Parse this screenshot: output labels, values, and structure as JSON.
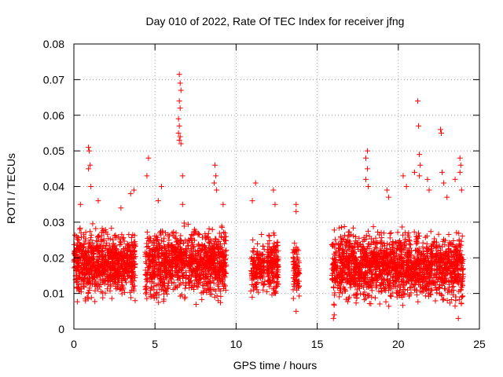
{
  "chart_data": {
    "type": "scatter",
    "title": "Day 010 of 2022, Rate Of TEC Index for receiver jfng",
    "xlabel": "GPS time / hours",
    "ylabel": "ROTI / TECUs",
    "xlim": [
      0,
      25
    ],
    "ylim": [
      0,
      0.08
    ],
    "x_ticks": [
      0,
      5,
      10,
      15,
      20,
      25
    ],
    "x_tick_labels": [
      "0",
      "5",
      "10",
      "15",
      "20",
      "25"
    ],
    "y_ticks": [
      0,
      0.01,
      0.02,
      0.03,
      0.04,
      0.05,
      0.06,
      0.07,
      0.08
    ],
    "y_tick_labels": [
      "0",
      "0.01",
      "0.02",
      "0.03",
      "0.04",
      "0.05",
      "0.06",
      "0.07",
      "0.08"
    ],
    "grid": true,
    "marker": "+",
    "marker_color": "#ff0000",
    "series": [
      {
        "name": "ROTI",
        "clusters": [
          {
            "x_range": [
              0.0,
              3.8
            ],
            "y_range": [
              0.006,
              0.03
            ],
            "count": 850
          },
          {
            "x_range": [
              4.4,
              9.4
            ],
            "y_range": [
              0.006,
              0.031
            ],
            "count": 1050
          },
          {
            "x_range": [
              10.9,
              11.8
            ],
            "y_range": [
              0.007,
              0.027
            ],
            "count": 140
          },
          {
            "x_range": [
              11.9,
              12.6
            ],
            "y_range": [
              0.006,
              0.03
            ],
            "count": 160
          },
          {
            "x_range": [
              13.5,
              13.9
            ],
            "y_range": [
              0.006,
              0.026
            ],
            "count": 80
          },
          {
            "x_range": [
              15.9,
              24.0
            ],
            "y_range": [
              0.005,
              0.03
            ],
            "count": 1700
          }
        ],
        "outliers": [
          {
            "x": 0.9,
            "y": 0.051
          },
          {
            "x": 0.95,
            "y": 0.05
          },
          {
            "x": 1.0,
            "y": 0.046
          },
          {
            "x": 0.9,
            "y": 0.045
          },
          {
            "x": 1.05,
            "y": 0.04
          },
          {
            "x": 0.4,
            "y": 0.035
          },
          {
            "x": 1.5,
            "y": 0.036
          },
          {
            "x": 2.9,
            "y": 0.034
          },
          {
            "x": 3.5,
            "y": 0.038
          },
          {
            "x": 3.7,
            "y": 0.039
          },
          {
            "x": 4.6,
            "y": 0.048
          },
          {
            "x": 4.5,
            "y": 0.043
          },
          {
            "x": 5.4,
            "y": 0.04
          },
          {
            "x": 5.2,
            "y": 0.036
          },
          {
            "x": 6.5,
            "y": 0.0715
          },
          {
            "x": 6.55,
            "y": 0.069
          },
          {
            "x": 6.6,
            "y": 0.067
          },
          {
            "x": 6.5,
            "y": 0.064
          },
          {
            "x": 6.55,
            "y": 0.062
          },
          {
            "x": 6.45,
            "y": 0.059
          },
          {
            "x": 6.5,
            "y": 0.057
          },
          {
            "x": 6.45,
            "y": 0.055
          },
          {
            "x": 6.55,
            "y": 0.054
          },
          {
            "x": 6.5,
            "y": 0.053
          },
          {
            "x": 6.6,
            "y": 0.052
          },
          {
            "x": 6.7,
            "y": 0.043
          },
          {
            "x": 6.7,
            "y": 0.035
          },
          {
            "x": 8.7,
            "y": 0.046
          },
          {
            "x": 8.75,
            "y": 0.043
          },
          {
            "x": 8.65,
            "y": 0.041
          },
          {
            "x": 8.8,
            "y": 0.039
          },
          {
            "x": 9.2,
            "y": 0.035
          },
          {
            "x": 11.2,
            "y": 0.041
          },
          {
            "x": 11.0,
            "y": 0.036
          },
          {
            "x": 12.3,
            "y": 0.039
          },
          {
            "x": 12.4,
            "y": 0.035
          },
          {
            "x": 13.7,
            "y": 0.035
          },
          {
            "x": 13.7,
            "y": 0.033
          },
          {
            "x": 18.1,
            "y": 0.05
          },
          {
            "x": 18.0,
            "y": 0.048
          },
          {
            "x": 18.1,
            "y": 0.045
          },
          {
            "x": 18.0,
            "y": 0.042
          },
          {
            "x": 18.15,
            "y": 0.04
          },
          {
            "x": 19.3,
            "y": 0.039
          },
          {
            "x": 19.4,
            "y": 0.037
          },
          {
            "x": 20.3,
            "y": 0.043
          },
          {
            "x": 20.5,
            "y": 0.04
          },
          {
            "x": 21.0,
            "y": 0.044
          },
          {
            "x": 21.2,
            "y": 0.064
          },
          {
            "x": 21.25,
            "y": 0.057
          },
          {
            "x": 21.3,
            "y": 0.049
          },
          {
            "x": 21.35,
            "y": 0.046
          },
          {
            "x": 21.3,
            "y": 0.043
          },
          {
            "x": 21.8,
            "y": 0.042
          },
          {
            "x": 21.9,
            "y": 0.039
          },
          {
            "x": 22.6,
            "y": 0.056
          },
          {
            "x": 22.65,
            "y": 0.055
          },
          {
            "x": 22.7,
            "y": 0.044
          },
          {
            "x": 22.8,
            "y": 0.041
          },
          {
            "x": 23.0,
            "y": 0.037
          },
          {
            "x": 23.5,
            "y": 0.042
          },
          {
            "x": 23.8,
            "y": 0.048
          },
          {
            "x": 23.85,
            "y": 0.046
          },
          {
            "x": 23.8,
            "y": 0.044
          },
          {
            "x": 23.9,
            "y": 0.039
          },
          {
            "x": 23.7,
            "y": 0.003
          },
          {
            "x": 16.0,
            "y": 0.003
          },
          {
            "x": 16.05,
            "y": 0.004
          },
          {
            "x": 13.7,
            "y": 0.005
          },
          {
            "x": 8.9,
            "y": 0.008
          }
        ]
      }
    ]
  }
}
